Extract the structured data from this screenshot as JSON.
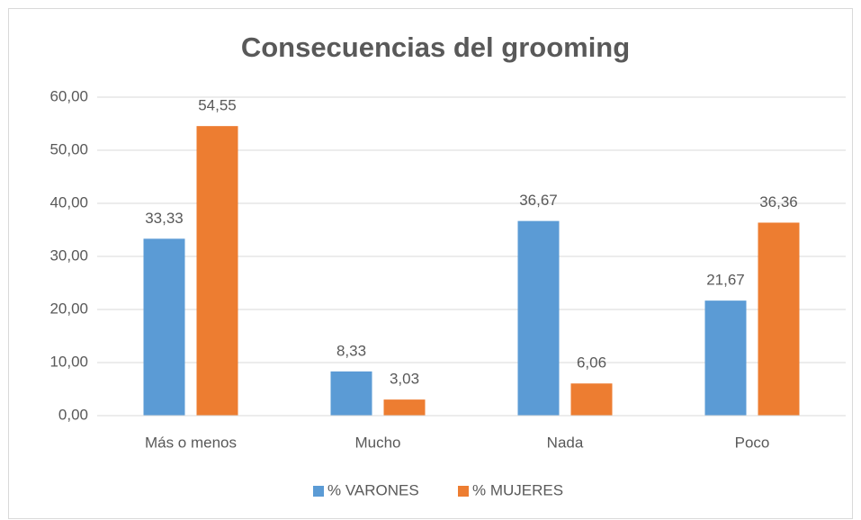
{
  "chart_data": {
    "type": "bar",
    "title": "Consecuencias del grooming",
    "categories": [
      "Más o menos",
      "Mucho",
      "Nada",
      "Poco"
    ],
    "series": [
      {
        "name": "% VARONES",
        "color": "#5b9bd5",
        "values": [
          33.33,
          8.33,
          36.67,
          21.67
        ],
        "value_labels": [
          "33,33",
          "8,33",
          "36,67",
          "21,67"
        ]
      },
      {
        "name": "% MUJERES",
        "color": "#ed7d31",
        "values": [
          54.55,
          3.03,
          6.06,
          36.36
        ],
        "value_labels": [
          "54,55",
          "3,03",
          "6,06",
          "36,36"
        ]
      }
    ],
    "ylim": [
      0,
      60
    ],
    "yticks": [
      {
        "value": 0,
        "label": "0,00"
      },
      {
        "value": 10,
        "label": "10,00"
      },
      {
        "value": 20,
        "label": "20,00"
      },
      {
        "value": 30,
        "label": "30,00"
      },
      {
        "value": 40,
        "label": "40,00"
      },
      {
        "value": 50,
        "label": "50,00"
      },
      {
        "value": 60,
        "label": "60,00"
      }
    ],
    "grid": true,
    "legend": "bottom"
  }
}
